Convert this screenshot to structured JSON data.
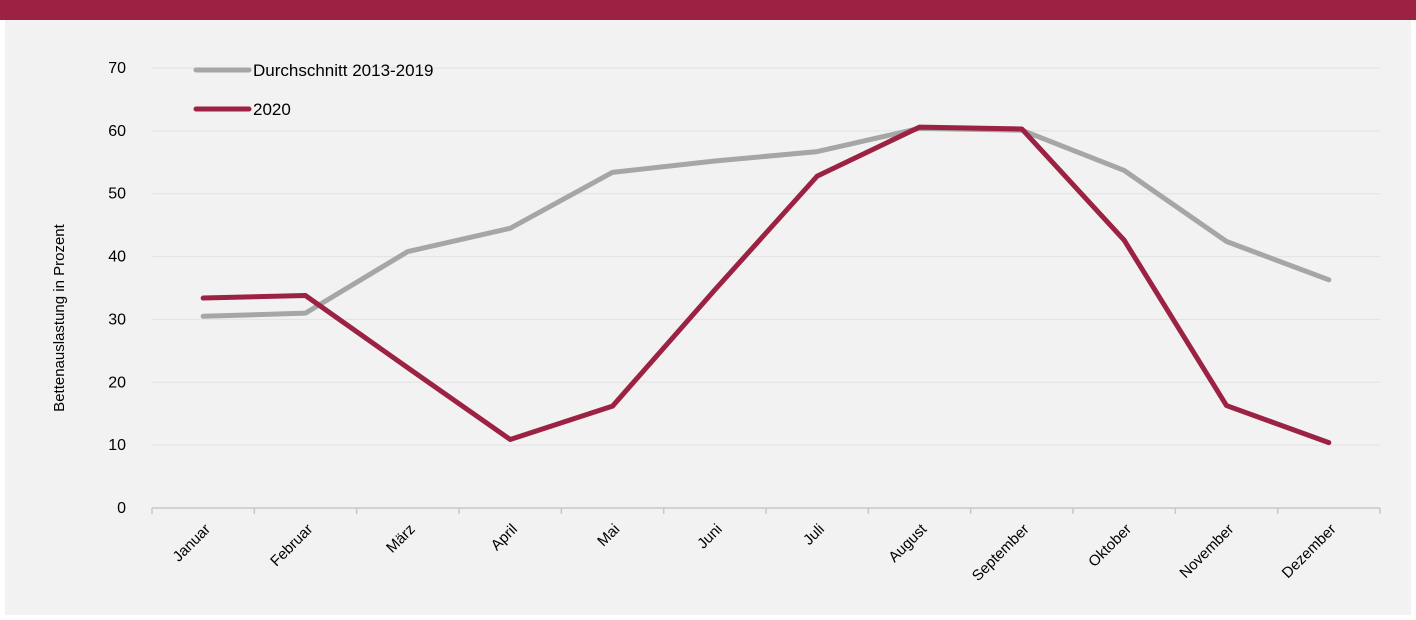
{
  "colors": {
    "banner": "#9b2242",
    "panel_background": "#f2f2f2",
    "gridline": "#e2e2e2",
    "axis": "#c8c8c8"
  },
  "chart_data": {
    "type": "line",
    "title": "",
    "xlabel": "",
    "ylabel": "Bettenauslastung in Prozent",
    "ylim": [
      0,
      70
    ],
    "yticks": [
      0,
      10,
      20,
      30,
      40,
      50,
      60,
      70
    ],
    "grid": "horizontal",
    "legend_position": "top-left",
    "categories": [
      "Januar",
      "Februar",
      "März",
      "April",
      "Mai",
      "Juni",
      "Juli",
      "August",
      "September",
      "Oktober",
      "November",
      "Dezember"
    ],
    "series": [
      {
        "name": "Durchschnitt 2013-2019",
        "color": "#a6a6a6",
        "values": [
          30.5,
          31.0,
          40.8,
          44.5,
          53.4,
          55.2,
          56.7,
          60.4,
          60.1,
          53.7,
          42.4,
          36.3
        ]
      },
      {
        "name": "2020",
        "color": "#9b2242",
        "values": [
          33.4,
          33.8,
          22.3,
          10.9,
          16.2,
          34.7,
          52.8,
          60.6,
          60.3,
          42.6,
          16.3,
          10.4
        ]
      }
    ]
  }
}
